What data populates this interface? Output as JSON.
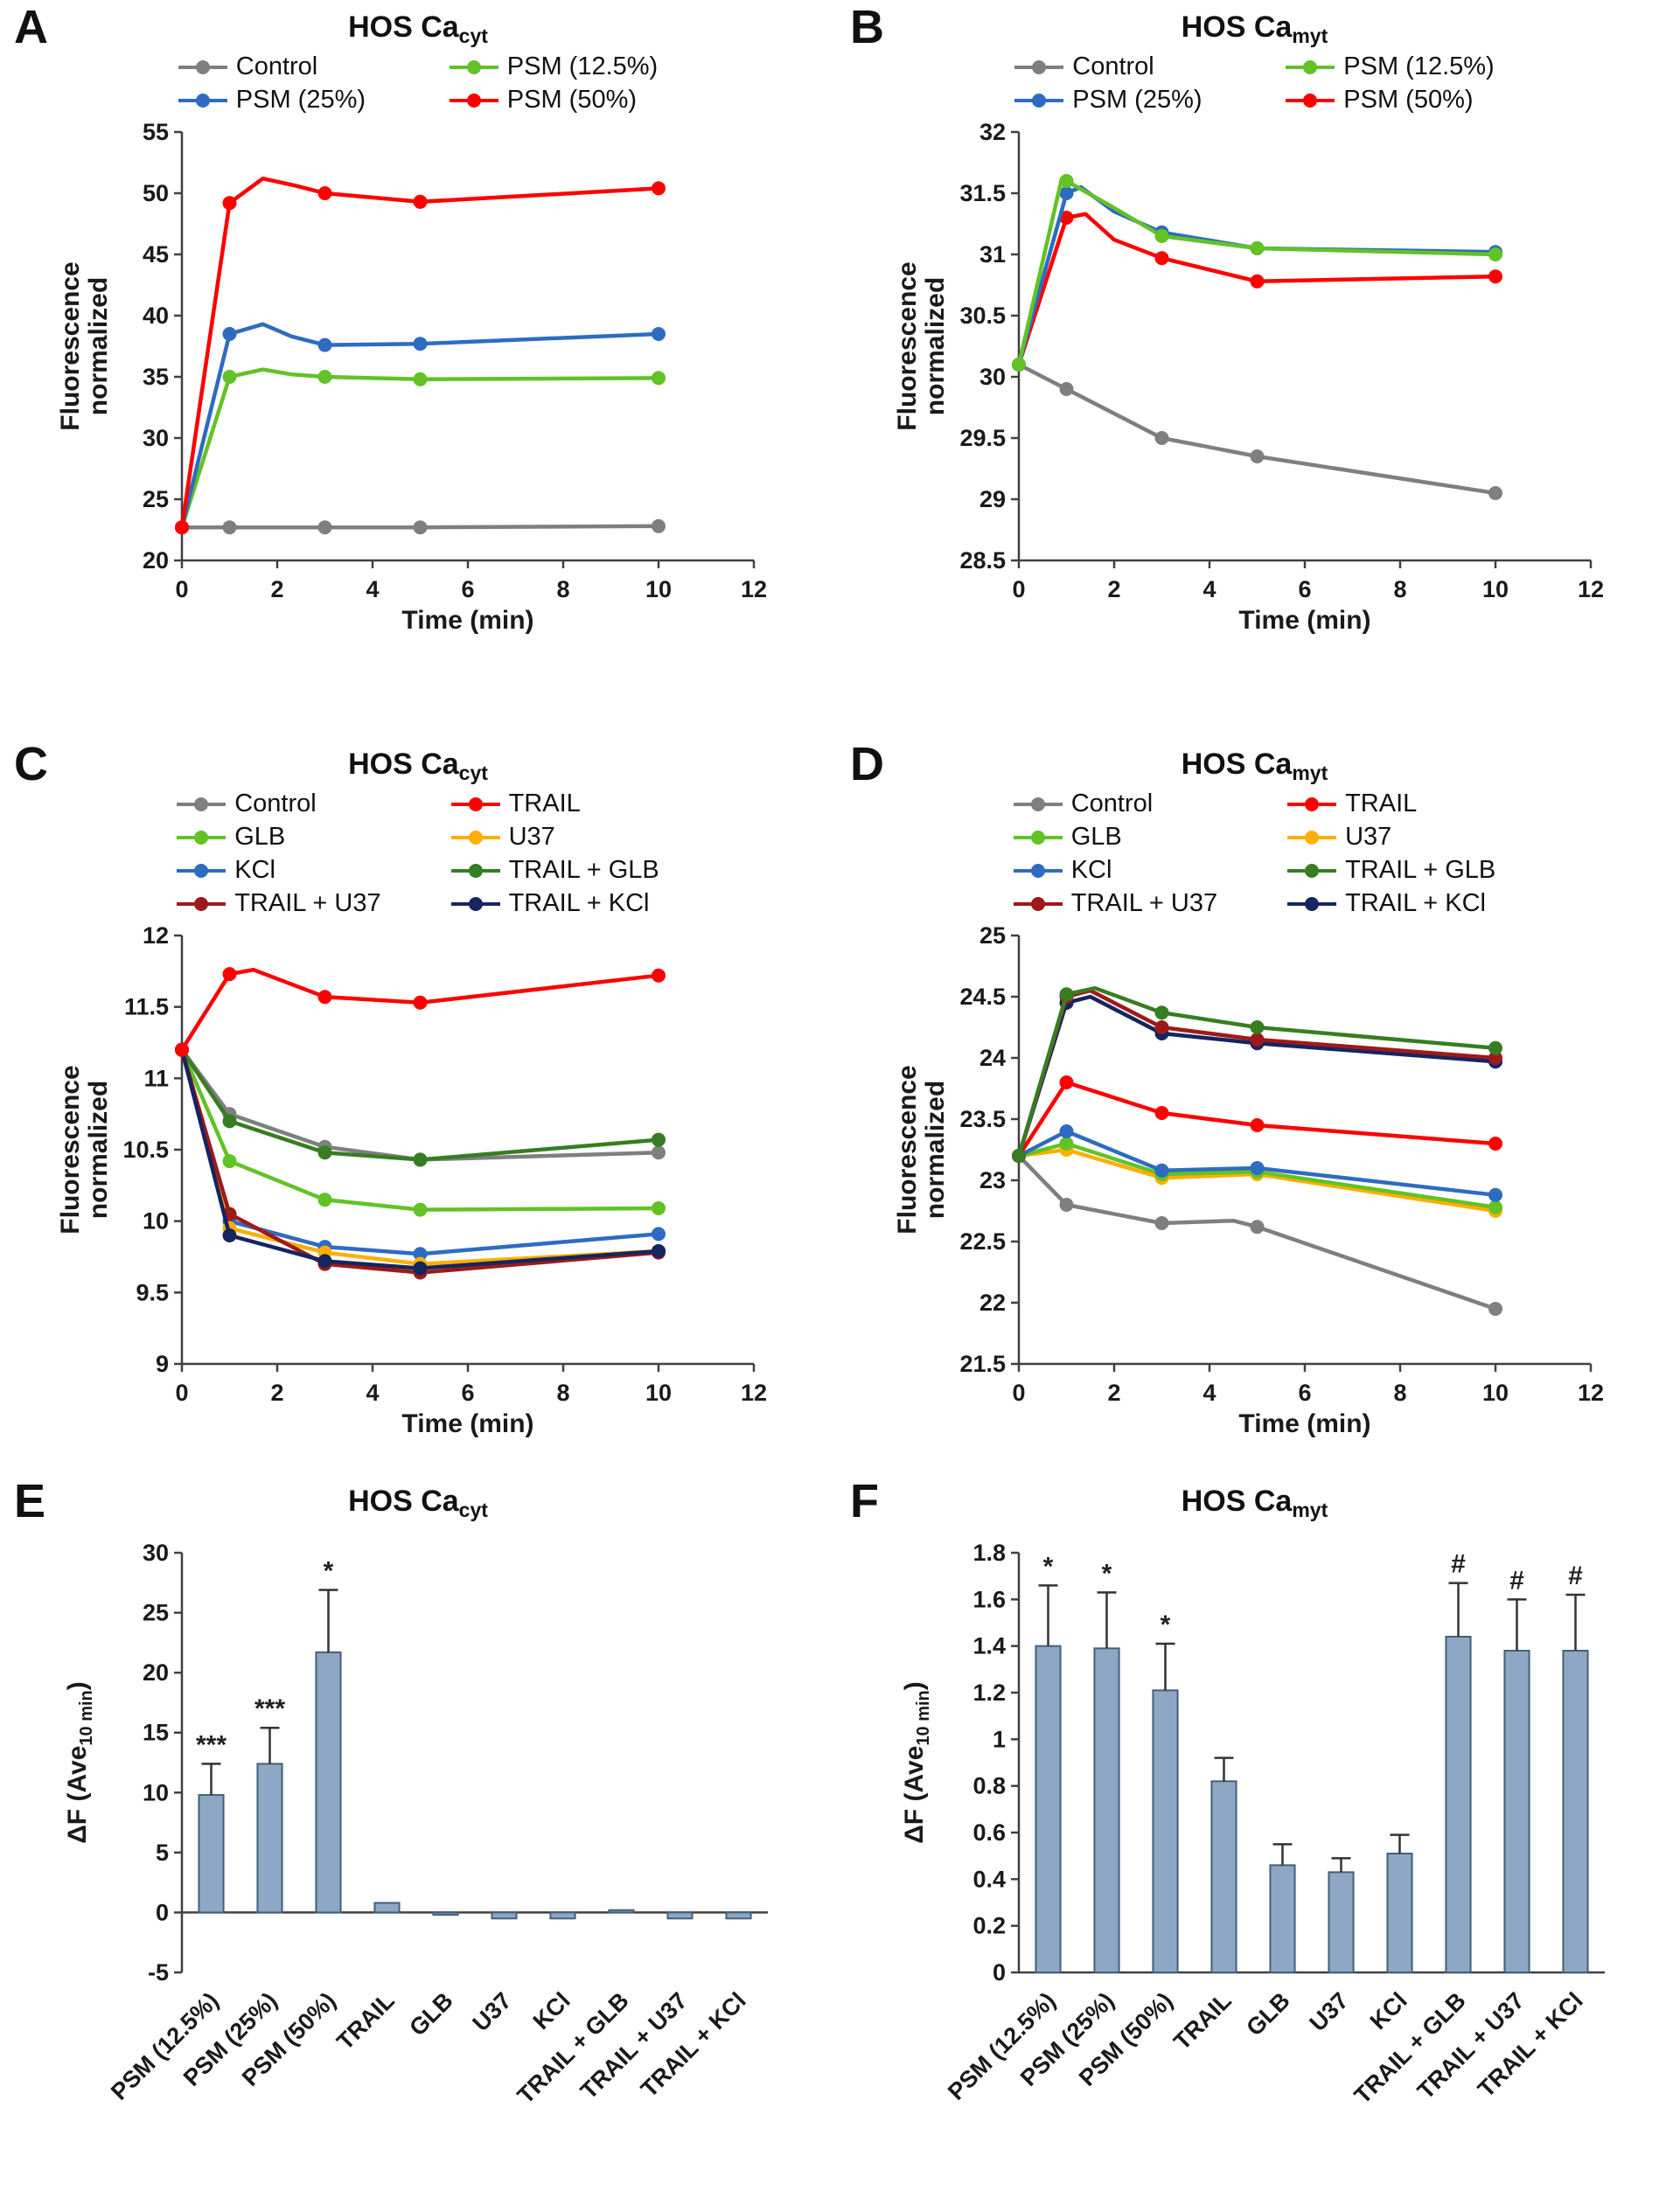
{
  "figure": {
    "background": "#ffffff",
    "axis_color": "#404040"
  },
  "bar_style": {
    "fill": "#8da7c4",
    "stroke": "#44607a",
    "error_color": "#333333"
  },
  "chart_data": [
    {
      "panel": "A",
      "type": "line",
      "title_main": "HOS Ca",
      "title_sub": "cyt",
      "xlabel": "Time (min)",
      "ylabel_lines": [
        "Fluorescence",
        "normalized"
      ],
      "xlim": [
        0,
        12
      ],
      "ylim": [
        20,
        55
      ],
      "xticks": [
        0,
        2,
        4,
        6,
        8,
        10,
        12
      ],
      "yticks": [
        20,
        25,
        30,
        35,
        40,
        45,
        50,
        55
      ],
      "marker_x": [
        0,
        1,
        3,
        5,
        10
      ],
      "legend_order": [
        "Control",
        "PSM (12.5%)",
        "PSM (25%)",
        "PSM (50%)"
      ],
      "series": [
        {
          "name": "Control",
          "color": "#7f7f7f",
          "points": [
            [
              0,
              22.7
            ],
            [
              1,
              22.7
            ],
            [
              3,
              22.7
            ],
            [
              5,
              22.7
            ],
            [
              10,
              22.8
            ]
          ]
        },
        {
          "name": "PSM (12.5%)",
          "color": "#62c226",
          "points": [
            [
              0,
              22.7
            ],
            [
              1,
              35.0
            ],
            [
              1.7,
              35.6
            ],
            [
              2.3,
              35.2
            ],
            [
              3,
              35.0
            ],
            [
              5,
              34.8
            ],
            [
              10,
              34.9
            ]
          ]
        },
        {
          "name": "PSM (25%)",
          "color": "#2d6cc0",
          "points": [
            [
              0,
              22.7
            ],
            [
              1,
              38.5
            ],
            [
              1.7,
              39.3
            ],
            [
              2.3,
              38.3
            ],
            [
              3,
              37.6
            ],
            [
              5,
              37.7
            ],
            [
              10,
              38.5
            ]
          ]
        },
        {
          "name": "PSM (50%)",
          "color": "#fe0000",
          "points": [
            [
              0,
              22.7
            ],
            [
              1,
              49.2
            ],
            [
              1.7,
              51.2
            ],
            [
              2.4,
              50.6
            ],
            [
              3,
              50.0
            ],
            [
              5,
              49.3
            ],
            [
              10,
              50.4
            ]
          ]
        }
      ]
    },
    {
      "panel": "B",
      "type": "line",
      "title_main": "HOS Ca",
      "title_sub": "myt",
      "xlabel": "Time (min)",
      "ylabel_lines": [
        "Fluorescence",
        "normalized"
      ],
      "xlim": [
        0,
        12
      ],
      "ylim": [
        28.5,
        32
      ],
      "xticks": [
        0,
        2,
        4,
        6,
        8,
        10,
        12
      ],
      "yticks": [
        28.5,
        29,
        29.5,
        30,
        30.5,
        31,
        31.5,
        32
      ],
      "marker_x": [
        0,
        1,
        3,
        5,
        10
      ],
      "legend_order": [
        "Control",
        "PSM (12.5%)",
        "PSM (25%)",
        "PSM (50%)"
      ],
      "series": [
        {
          "name": "Control",
          "color": "#7f7f7f",
          "points": [
            [
              0,
              30.1
            ],
            [
              1,
              29.9
            ],
            [
              3,
              29.5
            ],
            [
              5,
              29.35
            ],
            [
              10,
              29.05
            ]
          ]
        },
        {
          "name": "PSM (50%)",
          "color": "#fe0000",
          "points": [
            [
              0,
              30.1
            ],
            [
              1,
              31.3
            ],
            [
              1.4,
              31.33
            ],
            [
              2,
              31.12
            ],
            [
              3,
              30.97
            ],
            [
              5,
              30.78
            ],
            [
              10,
              30.82
            ]
          ]
        },
        {
          "name": "PSM (25%)",
          "color": "#2d6cc0",
          "points": [
            [
              0,
              30.1
            ],
            [
              1,
              31.5
            ],
            [
              1.3,
              31.55
            ],
            [
              2,
              31.35
            ],
            [
              3,
              31.18
            ],
            [
              5,
              31.05
            ],
            [
              10,
              31.02
            ]
          ]
        },
        {
          "name": "PSM (12.5%)",
          "color": "#62c226",
          "points": [
            [
              0,
              30.1
            ],
            [
              0.9,
              31.62
            ],
            [
              1,
              31.6
            ],
            [
              2,
              31.38
            ],
            [
              3,
              31.15
            ],
            [
              5,
              31.05
            ],
            [
              10,
              31.0
            ]
          ]
        }
      ]
    },
    {
      "panel": "C",
      "type": "line",
      "title_main": "HOS Ca",
      "title_sub": "cyt",
      "xlabel": "Time (min)",
      "ylabel_lines": [
        "Fluorescence",
        "normalized"
      ],
      "xlim": [
        0,
        12
      ],
      "ylim": [
        9,
        12
      ],
      "xticks": [
        0,
        2,
        4,
        6,
        8,
        10,
        12
      ],
      "yticks": [
        9,
        9.5,
        10,
        10.5,
        11,
        11.5,
        12
      ],
      "marker_x": [
        0,
        1,
        3,
        5,
        10
      ],
      "legend_order": [
        "Control",
        "TRAIL",
        "GLB",
        "U37",
        "KCl",
        "TRAIL + GLB",
        "TRAIL + U37",
        "TRAIL + KCl"
      ],
      "series": [
        {
          "name": "Control",
          "color": "#7f7f7f",
          "points": [
            [
              0,
              11.2
            ],
            [
              1,
              10.75
            ],
            [
              3,
              10.52
            ],
            [
              5,
              10.43
            ],
            [
              10,
              10.48
            ]
          ]
        },
        {
          "name": "GLB",
          "color": "#62c226",
          "points": [
            [
              0,
              11.2
            ],
            [
              1,
              10.42
            ],
            [
              3,
              10.15
            ],
            [
              5,
              10.08
            ],
            [
              10,
              10.09
            ]
          ]
        },
        {
          "name": "KCl",
          "color": "#2d6cc0",
          "points": [
            [
              0,
              11.2
            ],
            [
              1,
              10.0
            ],
            [
              3,
              9.82
            ],
            [
              5,
              9.77
            ],
            [
              10,
              9.91
            ]
          ]
        },
        {
          "name": "U37",
          "color": "#ffaf00",
          "points": [
            [
              0,
              11.2
            ],
            [
              1,
              9.95
            ],
            [
              3,
              9.78
            ],
            [
              5,
              9.7
            ],
            [
              10,
              9.79
            ]
          ]
        },
        {
          "name": "TRAIL + GLB",
          "color": "#377d22",
          "points": [
            [
              0,
              11.2
            ],
            [
              1,
              10.7
            ],
            [
              3,
              10.48
            ],
            [
              5,
              10.43
            ],
            [
              10,
              10.57
            ]
          ]
        },
        {
          "name": "TRAIL + U37",
          "color": "#9e1a1a",
          "points": [
            [
              0,
              11.2
            ],
            [
              1,
              10.05
            ],
            [
              3,
              9.7
            ],
            [
              5,
              9.64
            ],
            [
              10,
              9.78
            ]
          ]
        },
        {
          "name": "TRAIL + KCl",
          "color": "#152560",
          "points": [
            [
              0,
              11.2
            ],
            [
              1,
              9.9
            ],
            [
              3,
              9.72
            ],
            [
              5,
              9.67
            ],
            [
              10,
              9.79
            ]
          ]
        },
        {
          "name": "TRAIL",
          "color": "#fe0000",
          "points": [
            [
              0,
              11.2
            ],
            [
              1,
              11.73
            ],
            [
              1.5,
              11.76
            ],
            [
              3,
              11.57
            ],
            [
              5,
              11.53
            ],
            [
              10,
              11.72
            ]
          ]
        }
      ]
    },
    {
      "panel": "D",
      "type": "line",
      "title_main": "HOS Ca",
      "title_sub": "myt",
      "xlabel": "Time (min)",
      "ylabel_lines": [
        "Fluorescence",
        "normalized"
      ],
      "xlim": [
        0,
        12
      ],
      "ylim": [
        21.5,
        25
      ],
      "xticks": [
        0,
        2,
        4,
        6,
        8,
        10,
        12
      ],
      "yticks": [
        21.5,
        22,
        22.5,
        23,
        23.5,
        24,
        24.5,
        25
      ],
      "marker_x": [
        0,
        1,
        3,
        5,
        10
      ],
      "legend_order": [
        "Control",
        "TRAIL",
        "GLB",
        "U37",
        "KCl",
        "TRAIL + GLB",
        "TRAIL + U37",
        "TRAIL + KCl"
      ],
      "series": [
        {
          "name": "Control",
          "color": "#7f7f7f",
          "points": [
            [
              0,
              23.2
            ],
            [
              1,
              22.8
            ],
            [
              3,
              22.65
            ],
            [
              4.5,
              22.67
            ],
            [
              5,
              22.62
            ],
            [
              10,
              21.95
            ]
          ]
        },
        {
          "name": "U37",
          "color": "#ffaf00",
          "points": [
            [
              0,
              23.2
            ],
            [
              1,
              23.25
            ],
            [
              3,
              23.02
            ],
            [
              5,
              23.05
            ],
            [
              10,
              22.75
            ]
          ]
        },
        {
          "name": "GLB",
          "color": "#62c226",
          "points": [
            [
              0,
              23.2
            ],
            [
              1,
              23.3
            ],
            [
              3,
              23.05
            ],
            [
              5,
              23.07
            ],
            [
              10,
              22.78
            ]
          ]
        },
        {
          "name": "KCl",
          "color": "#2d6cc0",
          "points": [
            [
              0,
              23.2
            ],
            [
              1,
              23.4
            ],
            [
              3,
              23.08
            ],
            [
              5,
              23.1
            ],
            [
              10,
              22.88
            ]
          ]
        },
        {
          "name": "TRAIL",
          "color": "#fe0000",
          "points": [
            [
              0,
              23.2
            ],
            [
              1,
              23.8
            ],
            [
              3,
              23.55
            ],
            [
              5,
              23.45
            ],
            [
              10,
              23.3
            ]
          ]
        },
        {
          "name": "TRAIL + KCl",
          "color": "#152560",
          "points": [
            [
              0,
              23.2
            ],
            [
              1,
              24.45
            ],
            [
              1.5,
              24.5
            ],
            [
              3,
              24.2
            ],
            [
              5,
              24.12
            ],
            [
              10,
              23.97
            ]
          ]
        },
        {
          "name": "TRAIL + U37",
          "color": "#9e1a1a",
          "points": [
            [
              0,
              23.2
            ],
            [
              1,
              24.5
            ],
            [
              1.5,
              24.55
            ],
            [
              3,
              24.25
            ],
            [
              5,
              24.15
            ],
            [
              10,
              24.0
            ]
          ]
        },
        {
          "name": "TRAIL + GLB",
          "color": "#377d22",
          "points": [
            [
              0,
              23.2
            ],
            [
              1,
              24.52
            ],
            [
              1.6,
              24.57
            ],
            [
              3,
              24.37
            ],
            [
              5,
              24.25
            ],
            [
              10,
              24.08
            ]
          ]
        }
      ]
    },
    {
      "panel": "E",
      "type": "bar",
      "title_main": "HOS Ca",
      "title_sub": "cyt",
      "ylabel_prefix": "ΔF (Ave",
      "ylabel_sub": "10 min",
      "ylabel_suffix": ")",
      "ylim": [
        -5,
        30
      ],
      "yticks": [
        -5,
        0,
        5,
        10,
        15,
        20,
        25,
        30
      ],
      "categories": [
        "PSM (12.5%)",
        "PSM (25%)",
        "PSM (50%)",
        "TRAIL",
        "GLB",
        "U37",
        "KCl",
        "TRAIL + GLB",
        "TRAIL + U37",
        "TRAIL + KCl"
      ],
      "values": [
        9.8,
        12.4,
        21.7,
        0.8,
        -0.2,
        -0.5,
        -0.5,
        0.2,
        -0.5,
        -0.5
      ],
      "errors": [
        2.6,
        3.0,
        5.2,
        0,
        0,
        0,
        0,
        0,
        0,
        0
      ],
      "sig": [
        "***",
        "***",
        "*",
        "",
        "",
        "",
        "",
        "",
        "",
        ""
      ]
    },
    {
      "panel": "F",
      "type": "bar",
      "title_main": "HOS Ca",
      "title_sub": "myt",
      "ylabel_prefix": "ΔF (Ave",
      "ylabel_sub": "10 min",
      "ylabel_suffix": ")",
      "ylim": [
        0,
        1.8
      ],
      "yticks": [
        0,
        0.2,
        0.4,
        0.6,
        0.8,
        1,
        1.2,
        1.4,
        1.6,
        1.8
      ],
      "categories": [
        "PSM (12.5%)",
        "PSM (25%)",
        "PSM (50%)",
        "TRAIL",
        "GLB",
        "U37",
        "KCl",
        "TRAIL + GLB",
        "TRAIL + U37",
        "TRAIL + KCl"
      ],
      "values": [
        1.4,
        1.39,
        1.21,
        0.82,
        0.46,
        0.43,
        0.51,
        1.44,
        1.38,
        1.38
      ],
      "errors": [
        0.26,
        0.24,
        0.2,
        0.1,
        0.09,
        0.06,
        0.08,
        0.23,
        0.22,
        0.24
      ],
      "sig": [
        "*",
        "*",
        "*",
        "",
        "",
        "",
        "",
        "#",
        "#",
        "#"
      ]
    }
  ]
}
